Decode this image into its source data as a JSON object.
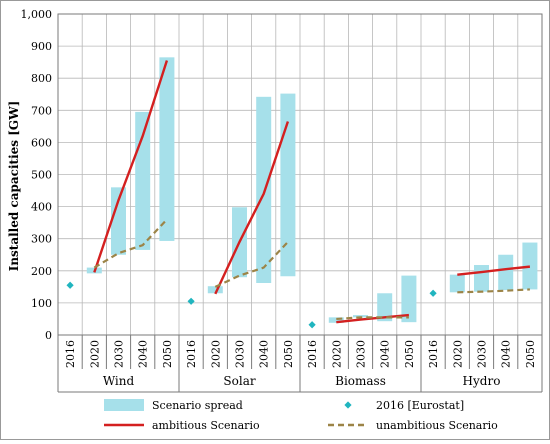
{
  "chart_data": {
    "type": "bar",
    "ylabel": "Installed capacities [GW]",
    "ylim": [
      0,
      1000
    ],
    "yticks": [
      "0",
      "100",
      "200",
      "300",
      "400",
      "500",
      "600",
      "700",
      "800",
      "900",
      "1,000"
    ],
    "grid": true,
    "legend_position": "bottom",
    "groups": [
      {
        "name": "Wind",
        "years": [
          "2016",
          "2020",
          "2030",
          "2040",
          "2050"
        ]
      },
      {
        "name": "Solar",
        "years": [
          "2016",
          "2020",
          "2030",
          "2040",
          "2050"
        ]
      },
      {
        "name": "Biomass",
        "years": [
          "2016",
          "2020",
          "2030",
          "2040",
          "2050"
        ]
      },
      {
        "name": "Hydro",
        "years": [
          "2016",
          "2020",
          "2030",
          "2040",
          "2050"
        ]
      }
    ],
    "series": [
      {
        "name": "Scenario spread",
        "kind": "range_bar",
        "color": "#a6e0ea",
        "data": [
          [
            null,
            [
              192,
              210
            ],
            [
              250,
              460
            ],
            [
              265,
              695
            ],
            [
              293,
              865
            ]
          ],
          [
            null,
            [
              130,
              152
            ],
            [
              180,
              398
            ],
            [
              162,
              742
            ],
            [
              183,
              752
            ]
          ],
          [
            null,
            [
              38,
              55
            ],
            [
              55,
              62
            ],
            [
              43,
              130
            ],
            [
              40,
              185
            ]
          ],
          [
            null,
            [
              133,
              188
            ],
            [
              135,
              218
            ],
            [
              140,
              250
            ],
            [
              142,
              288
            ]
          ]
        ]
      },
      {
        "name": "2016 [Eurostat]",
        "kind": "point",
        "color": "#20b5bf",
        "data": [
          [
            155,
            null,
            null,
            null,
            null
          ],
          [
            105,
            null,
            null,
            null,
            null
          ],
          [
            32,
            null,
            null,
            null,
            null
          ],
          [
            130,
            null,
            null,
            null,
            null
          ]
        ]
      },
      {
        "name": "ambitious Scenario",
        "kind": "line",
        "color": "#d42020",
        "data": [
          [
            null,
            195,
            420,
            620,
            855
          ],
          [
            null,
            128,
            290,
            440,
            665
          ],
          [
            null,
            40,
            48,
            55,
            62
          ],
          [
            null,
            188,
            196,
            205,
            213
          ]
        ]
      },
      {
        "name": "unambitious Scenario",
        "kind": "dashed_line",
        "color": "#9c8447",
        "data": [
          [
            null,
            210,
            255,
            280,
            360
          ],
          [
            null,
            150,
            185,
            210,
            290
          ],
          [
            null,
            50,
            55,
            55,
            55
          ],
          [
            null,
            133,
            135,
            138,
            142
          ]
        ]
      }
    ]
  }
}
